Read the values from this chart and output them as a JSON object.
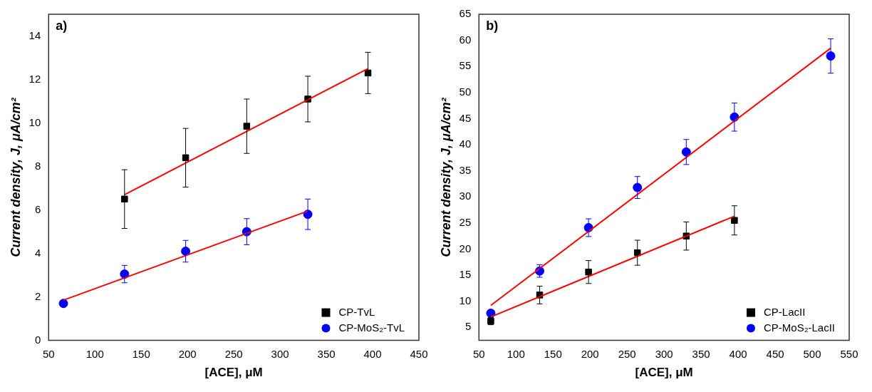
{
  "chart_data": [
    {
      "type": "scatter",
      "annotations": [
        "a)"
      ],
      "xlabel": "[ACE], μM",
      "ylabel": "Current density, J, μA/cm²",
      "xlim": [
        50,
        450
      ],
      "xticks": [
        50,
        100,
        150,
        200,
        250,
        300,
        350,
        400,
        450
      ],
      "ylim": [
        0,
        15
      ],
      "yticks": [
        0,
        2,
        4,
        6,
        8,
        10,
        12,
        14
      ],
      "grid": false,
      "legend": "bottom right",
      "series": [
        {
          "name": "CP-TvL",
          "color": "#000000",
          "marker": "square",
          "x": [
            132,
            198,
            264,
            330,
            395
          ],
          "values": [
            6.5,
            8.4,
            9.85,
            11.1,
            12.3
          ],
          "errors": [
            1.35,
            1.35,
            1.25,
            1.05,
            0.95
          ]
        },
        {
          "name": "CP-MoS₂-TvL",
          "color": "#0000ff",
          "marker": "circle",
          "x": [
            66,
            132,
            198,
            264,
            330
          ],
          "values": [
            1.7,
            3.05,
            4.1,
            5.0,
            5.8
          ],
          "errors": [
            null,
            0.4,
            0.5,
            0.6,
            0.7
          ]
        },
        {
          "type": "line",
          "color": "#ff0000",
          "marker": "none",
          "x": [
            132,
            395
          ],
          "values": [
            6.7,
            12.5
          ]
        },
        {
          "type": "line",
          "color": "#ff0000",
          "marker": "none",
          "x": [
            66,
            330
          ],
          "values": [
            1.85,
            5.95
          ]
        }
      ]
    },
    {
      "type": "scatter",
      "annotations": [
        "b)"
      ],
      "xlabel": "[ACE], μM",
      "ylabel": "Current density, J, μA/cm²",
      "xlim": [
        50,
        550
      ],
      "xticks": [
        50,
        100,
        150,
        200,
        250,
        300,
        350,
        400,
        450,
        500,
        550
      ],
      "ylim": [
        2.5,
        65
      ],
      "yticks": [
        5,
        10,
        15,
        20,
        25,
        30,
        35,
        40,
        45,
        50,
        55,
        60,
        65
      ],
      "grid": false,
      "legend": "bottom right",
      "series": [
        {
          "name": "CP-LacII",
          "color": "#000000",
          "marker": "square",
          "x": [
            66,
            132,
            198,
            264,
            330,
            395
          ],
          "values": [
            6.2,
            11.2,
            15.6,
            19.3,
            22.5,
            25.5
          ],
          "errors": [
            0.7,
            1.7,
            2.2,
            2.4,
            2.7,
            2.8
          ]
        },
        {
          "name": "CP-MoS₂-LacII",
          "color": "#0000ff",
          "marker": "circle",
          "x": [
            66,
            132,
            198,
            264,
            330,
            395,
            525
          ],
          "values": [
            7.7,
            15.8,
            24.1,
            31.8,
            38.6,
            45.3,
            57.0
          ],
          "errors": [
            null,
            1.2,
            1.7,
            2.1,
            2.4,
            2.7,
            3.3
          ]
        },
        {
          "type": "line",
          "color": "#ff0000",
          "marker": "none",
          "x": [
            66,
            395
          ],
          "values": [
            7.0,
            26.3
          ]
        },
        {
          "type": "line",
          "color": "#ff0000",
          "marker": "none",
          "x": [
            66,
            525
          ],
          "values": [
            9.2,
            58.5
          ]
        }
      ]
    }
  ]
}
